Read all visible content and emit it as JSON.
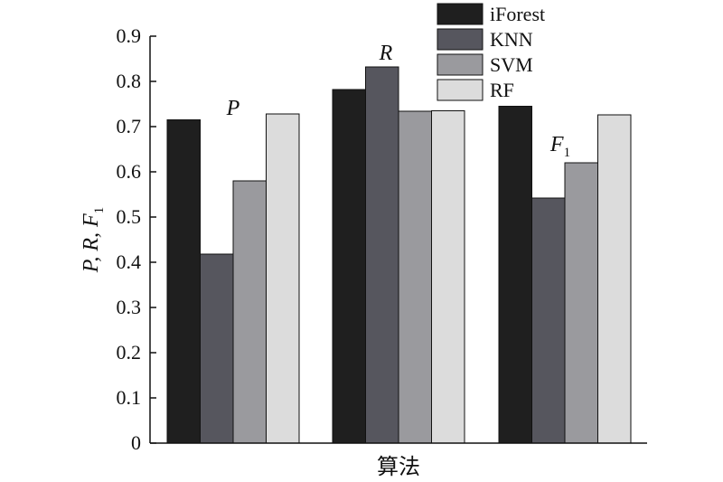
{
  "chart_data": {
    "type": "bar",
    "categories": [
      "P",
      "R",
      "F1"
    ],
    "category_labels": [
      {
        "main": "P",
        "sub": ""
      },
      {
        "main": "R",
        "sub": ""
      },
      {
        "main": "F",
        "sub": "1"
      }
    ],
    "series": [
      {
        "name": "iForest",
        "color": "#1f1f1f",
        "values": [
          0.715,
          0.782,
          0.745
        ]
      },
      {
        "name": "KNN",
        "color": "#56565e",
        "values": [
          0.418,
          0.832,
          0.542
        ]
      },
      {
        "name": "SVM",
        "color": "#9a9a9e",
        "values": [
          0.58,
          0.734,
          0.62
        ]
      },
      {
        "name": "RF",
        "color": "#dcdcdc",
        "values": [
          0.728,
          0.735,
          0.726
        ]
      }
    ],
    "xlabel": "算法",
    "ylabel_parts": {
      "text": "P, R, F",
      "sub": "1"
    },
    "ylim": [
      0,
      0.9
    ],
    "yticks": [
      "0",
      "0.1",
      "0.2",
      "0.3",
      "0.4",
      "0.5",
      "0.6",
      "0.7",
      "0.8",
      "0.9"
    ],
    "legend_position": "top-right",
    "grid": false
  }
}
